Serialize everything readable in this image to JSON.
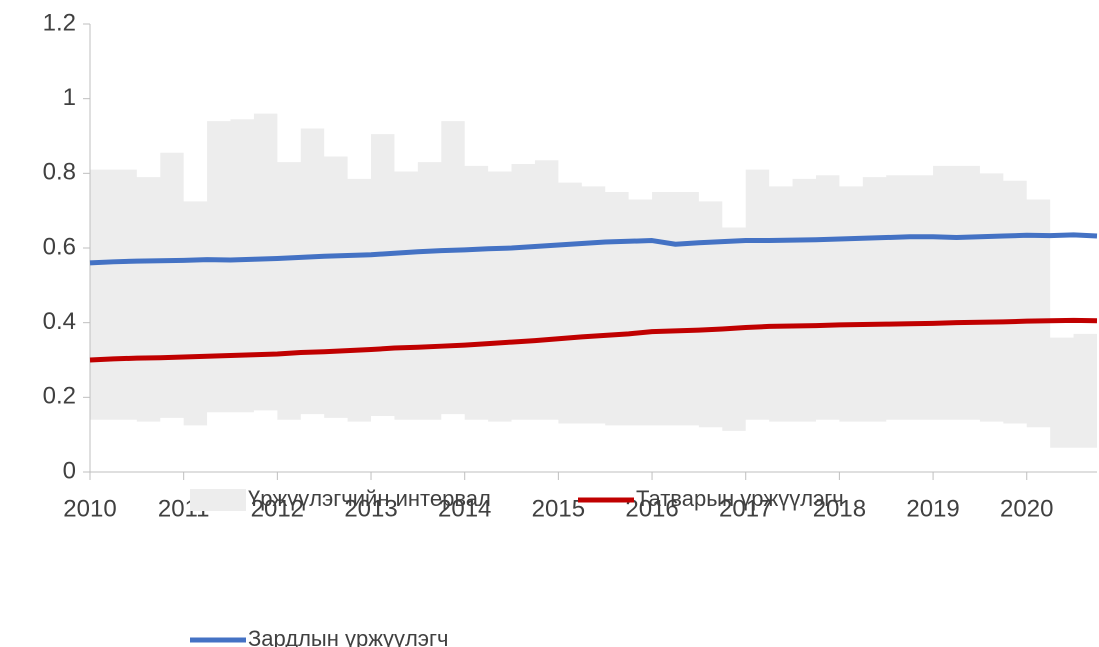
{
  "chart_data": {
    "type": "line",
    "x": [
      2010,
      2010.25,
      2010.5,
      2010.75,
      2011,
      2011.25,
      2011.5,
      2011.75,
      2012,
      2012.25,
      2012.5,
      2012.75,
      2013,
      2013.25,
      2013.5,
      2013.75,
      2014,
      2014.25,
      2014.5,
      2014.75,
      2015,
      2015.25,
      2015.5,
      2015.75,
      2016,
      2016.25,
      2016.5,
      2016.75,
      2017,
      2017.25,
      2017.5,
      2017.75,
      2018,
      2018.25,
      2018.5,
      2018.75,
      2019,
      2019.25,
      2019.5,
      2019.75,
      2020,
      2020.25,
      2020.5,
      2020.75
    ],
    "series": [
      {
        "name": "Үржүүлэгчийн интервал",
        "color": "#ededed",
        "kind": "band",
        "upper": [
          0.81,
          0.81,
          0.79,
          0.855,
          0.725,
          0.94,
          0.945,
          0.96,
          0.83,
          0.92,
          0.845,
          0.785,
          0.905,
          0.805,
          0.83,
          0.94,
          0.82,
          0.805,
          0.825,
          0.835,
          0.775,
          0.765,
          0.75,
          0.73,
          0.75,
          0.75,
          0.725,
          0.655,
          0.81,
          0.765,
          0.785,
          0.795,
          0.765,
          0.79,
          0.795,
          0.795,
          0.82,
          0.82,
          0.8,
          0.78,
          0.73,
          0.36,
          0.37,
          0.41
        ],
        "lower": [
          0.14,
          0.14,
          0.135,
          0.145,
          0.125,
          0.16,
          0.16,
          0.165,
          0.14,
          0.155,
          0.145,
          0.135,
          0.15,
          0.14,
          0.14,
          0.155,
          0.14,
          0.135,
          0.14,
          0.14,
          0.13,
          0.13,
          0.125,
          0.125,
          0.125,
          0.125,
          0.12,
          0.11,
          0.14,
          0.135,
          0.135,
          0.14,
          0.135,
          0.135,
          0.14,
          0.14,
          0.14,
          0.14,
          0.135,
          0.13,
          0.12,
          0.065,
          0.065,
          0.075
        ]
      },
      {
        "name": "Татварын үржүүлэгч",
        "color": "#c00000",
        "values": [
          0.3,
          0.303,
          0.305,
          0.306,
          0.308,
          0.31,
          0.312,
          0.314,
          0.316,
          0.32,
          0.322,
          0.325,
          0.328,
          0.332,
          0.334,
          0.337,
          0.34,
          0.344,
          0.348,
          0.352,
          0.357,
          0.362,
          0.366,
          0.37,
          0.376,
          0.378,
          0.38,
          0.383,
          0.387,
          0.39,
          0.391,
          0.392,
          0.394,
          0.395,
          0.396,
          0.397,
          0.398,
          0.4,
          0.401,
          0.402,
          0.404,
          0.405,
          0.406,
          0.405
        ]
      },
      {
        "name": "Зардлын үржүүлэгч",
        "color": "#4472c4",
        "values": [
          0.56,
          0.563,
          0.565,
          0.566,
          0.567,
          0.569,
          0.568,
          0.57,
          0.572,
          0.575,
          0.578,
          0.58,
          0.582,
          0.586,
          0.59,
          0.593,
          0.595,
          0.598,
          0.6,
          0.604,
          0.608,
          0.612,
          0.616,
          0.618,
          0.62,
          0.61,
          0.614,
          0.617,
          0.62,
          0.62,
          0.621,
          0.622,
          0.624,
          0.626,
          0.628,
          0.63,
          0.63,
          0.628,
          0.63,
          0.632,
          0.634,
          0.633,
          0.635,
          0.632
        ]
      }
    ],
    "xlim": [
      2010,
      2020.75
    ],
    "xticks": [
      2010,
      2011,
      2012,
      2013,
      2014,
      2015,
      2016,
      2017,
      2018,
      2019,
      2020
    ],
    "ylim": [
      0,
      1.2
    ],
    "yticks": [
      0,
      0.2,
      0.4,
      0.6,
      0.8,
      1,
      1.2
    ],
    "legend": "bottom"
  }
}
